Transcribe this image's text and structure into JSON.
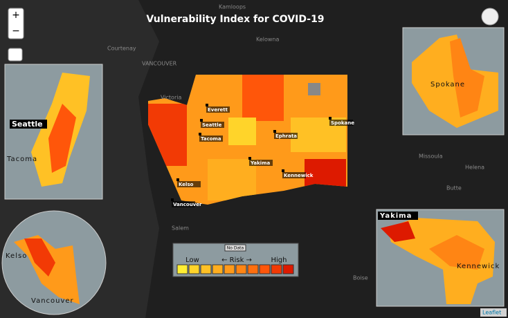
{
  "title": "Vulnerability Index for COVID-19",
  "zoom_controls": [
    "+",
    "−"
  ],
  "basemap_labels": [
    "Kamloops",
    "Kelowna",
    "Courtenay",
    "VANCOUVER",
    "Victoria",
    "Salem",
    "Missoula",
    "Helena",
    "Butte",
    "Boise"
  ],
  "cities": [
    "Everett",
    "Seattle",
    "Tacoma",
    "Ephrata",
    "Spokane",
    "Yakima",
    "Kennewick",
    "Kelso",
    "Vancouver"
  ],
  "insets": {
    "seattle": [
      "Seattle",
      "Tacoma"
    ],
    "spokane": [
      "Spokane"
    ],
    "kelso": [
      "Kelso",
      "Vancouver"
    ],
    "yakima": [
      "Yakima",
      "Kennewick"
    ]
  },
  "legend": {
    "no_data": "No Data",
    "low": "Low",
    "risk": "← Risk →",
    "high": "High",
    "colors": [
      "#ffee33",
      "#ffd42a",
      "#ffc125",
      "#ffae1f",
      "#ff9a1a",
      "#ff8514",
      "#ff6f0f",
      "#ff560a",
      "#f23a05",
      "#dd1a00"
    ]
  },
  "attribution": "Leaflet"
}
